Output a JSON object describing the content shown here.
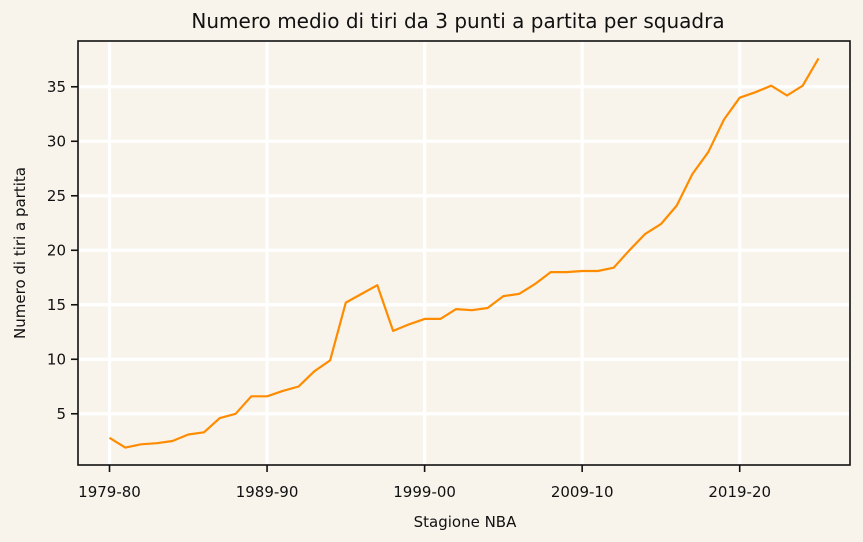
{
  "chart_data": {
    "type": "line",
    "title": "Numero medio di tiri da 3 punti a partita per squadra",
    "xlabel": "Stagione NBA",
    "ylabel": "Numero di tiri a partita",
    "x_tick_labels": [
      "1979-80",
      "1989-90",
      "1999-00",
      "2009-10",
      "2019-20"
    ],
    "x_tick_values": [
      1979,
      1989,
      1999,
      2009,
      2019
    ],
    "y_ticks": [
      5,
      10,
      15,
      20,
      25,
      30,
      35
    ],
    "xlim": [
      1977,
      2026
    ],
    "ylim": [
      0.3,
      39.2
    ],
    "grid": true,
    "line_color": "#ff8c00",
    "x": [
      1979,
      1980,
      1981,
      1982,
      1983,
      1984,
      1985,
      1986,
      1987,
      1988,
      1989,
      1990,
      1991,
      1992,
      1993,
      1994,
      1995,
      1996,
      1997,
      1998,
      1999,
      2000,
      2001,
      2002,
      2003,
      2004,
      2005,
      2006,
      2007,
      2008,
      2009,
      2010,
      2011,
      2012,
      2013,
      2014,
      2015,
      2016,
      2017,
      2018,
      2019,
      2020,
      2021,
      2022,
      2023,
      2024
    ],
    "values": [
      2.8,
      1.9,
      2.2,
      2.3,
      2.5,
      3.1,
      3.3,
      4.6,
      5.0,
      6.6,
      6.6,
      7.1,
      7.5,
      8.9,
      9.9,
      15.2,
      16.0,
      16.8,
      12.6,
      13.2,
      13.7,
      13.7,
      14.6,
      14.5,
      14.7,
      15.8,
      16.0,
      16.9,
      18.0,
      18.0,
      18.1,
      18.1,
      18.4,
      20.0,
      21.5,
      22.4,
      24.1,
      27.0,
      29.0,
      32.0,
      34.0,
      34.5,
      35.1,
      34.2,
      35.1,
      37.6
    ]
  }
}
